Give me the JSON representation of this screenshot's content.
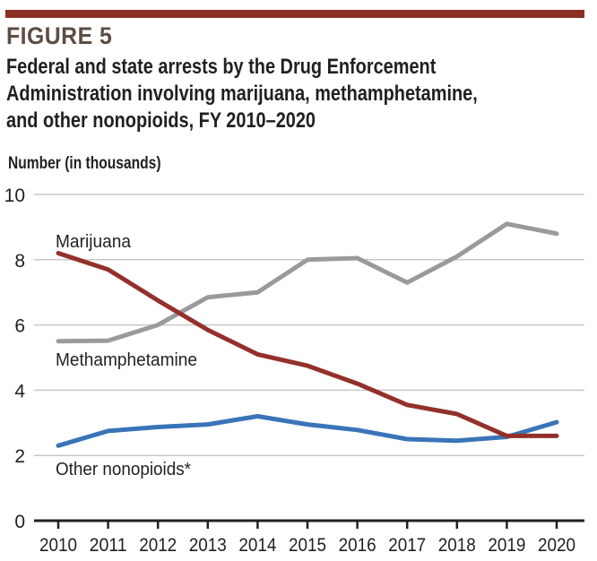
{
  "figure_label": "FIGURE 5",
  "title_lines": [
    "Federal and state arrests by the Drug Enforcement",
    "Administration involving marijuana, methamphetamine,",
    "and other nonopioids, FY 2010–2020"
  ],
  "colors": {
    "accent_bar": "#8c2f24",
    "marijuana": "#93302a",
    "methamphetamine": "#999a9d",
    "other": "#3a74b8",
    "grid": "#c8c8c8",
    "axis": "#231f20"
  },
  "chart_data": {
    "type": "line",
    "title": "Federal and state arrests by the Drug Enforcement Administration involving marijuana, methamphetamine, and other nonopioids, FY 2010–2020",
    "xlabel": "",
    "ylabel": "Number (in thousands)",
    "x": [
      2010,
      2011,
      2012,
      2013,
      2014,
      2015,
      2016,
      2017,
      2018,
      2019,
      2020
    ],
    "x_tick_labels": [
      "2010",
      "2011",
      "2012",
      "2013",
      "2014",
      "2015",
      "2016",
      "2017",
      "2018",
      "2019",
      "2020"
    ],
    "ylim": [
      0,
      10
    ],
    "y_ticks": [
      0,
      2,
      4,
      6,
      8,
      10
    ],
    "y_tick_labels": [
      "0",
      "2",
      "4",
      "6",
      "8",
      "10"
    ],
    "grid": true,
    "legend": "inline-labels",
    "series": [
      {
        "name": "Marijuana",
        "key": "marijuana",
        "values": [
          8.2,
          7.7,
          6.75,
          5.85,
          5.1,
          4.75,
          4.2,
          3.55,
          3.27,
          2.6,
          2.6
        ]
      },
      {
        "name": "Methamphetamine",
        "key": "methamphetamine",
        "values": [
          5.5,
          5.52,
          6.0,
          6.85,
          7.0,
          8.0,
          8.05,
          7.3,
          8.1,
          9.1,
          8.8
        ]
      },
      {
        "name": "Other nonopioids*",
        "key": "other",
        "values": [
          2.3,
          2.75,
          2.87,
          2.95,
          3.2,
          2.95,
          2.78,
          2.5,
          2.45,
          2.57,
          3.02
        ]
      }
    ]
  }
}
